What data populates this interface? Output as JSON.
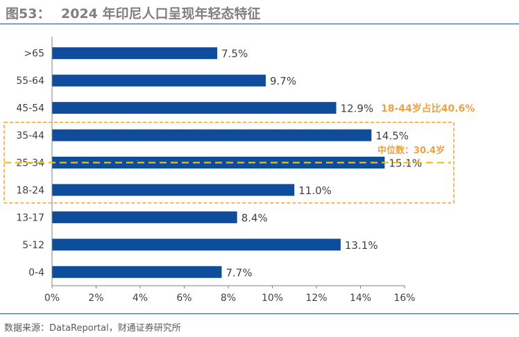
{
  "header": {
    "figure_label": "图53：",
    "title": "2024 年印尼人口呈现年轻态特征"
  },
  "source": "数据来源：DataReportal，财通证券研究所",
  "colors": {
    "bar": "#0f4c9c",
    "annotation": "#f0a040",
    "axis": "#7f7f7f",
    "title": "#7f7f7f"
  },
  "chart_data": {
    "type": "bar",
    "orientation": "horizontal",
    "categories": [
      ">65",
      "55-64",
      "45-54",
      "35-44",
      "25-34",
      "18-24",
      "13-17",
      "5-12",
      "0-4"
    ],
    "values": [
      7.5,
      9.7,
      12.9,
      14.5,
      15.1,
      11.0,
      8.4,
      13.1,
      7.7
    ],
    "value_labels": [
      "7.5%",
      "9.7%",
      "12.9%",
      "14.5%",
      "15.1%",
      "11.0%",
      "8.4%",
      "13.1%",
      "7.7%"
    ],
    "xlim": [
      0,
      16
    ],
    "xticks": [
      0,
      2,
      4,
      6,
      8,
      10,
      12,
      14,
      16
    ],
    "xtick_labels": [
      "0%",
      "2%",
      "4%",
      "6%",
      "8%",
      "10%",
      "12%",
      "14%",
      "16%"
    ],
    "grid": false,
    "annotations": {
      "group_label": "18-44岁占比40.6%",
      "group_categories": [
        "35-44",
        "25-34",
        "18-24"
      ],
      "median_label": "中位数：30.4岁",
      "median_category": "25-34"
    }
  }
}
